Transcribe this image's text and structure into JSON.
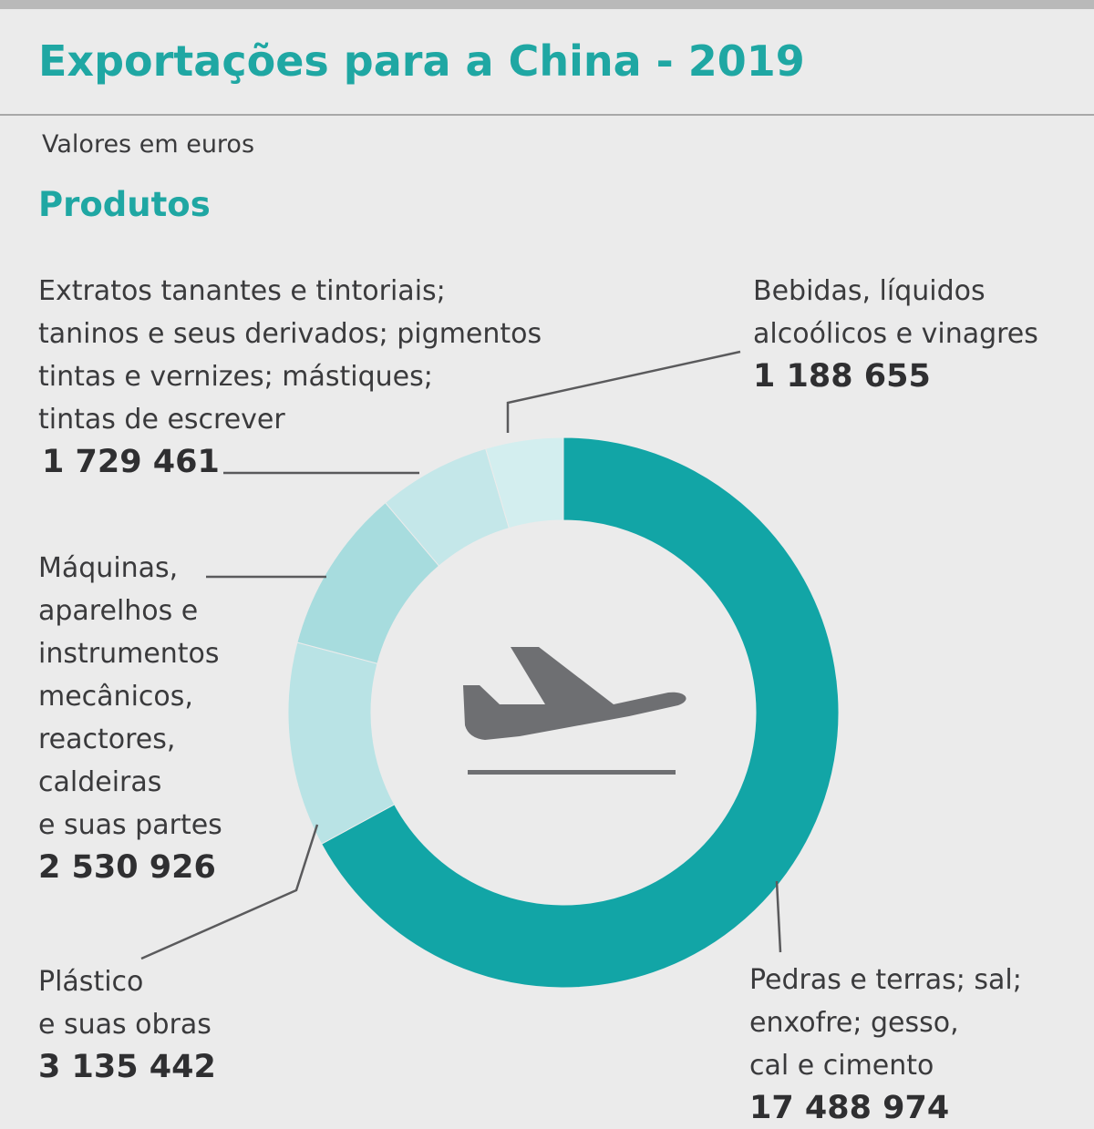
{
  "title": "Exportações para a China - 2019",
  "subtitle": "Valores em euros",
  "section_title": "Produtos",
  "center_icon": "airplane-departure-icon",
  "colors": {
    "accent": "#1fa7a3",
    "segment_main": "#12a5a6",
    "segment_light_1": "#7fcdd0",
    "segment_light_2": "#9dd8da",
    "segment_light_3": "#b5e1e3",
    "segment_light_4": "#c4e7e9",
    "segment_light_5": "#d3eeef",
    "background": "#ebebeb",
    "icon": "#6e6f72"
  },
  "labels": {
    "pedras": {
      "text": "Pedras e terras; sal;\nenxofre; gesso,\ncal e cimento",
      "value": "17 488 974"
    },
    "plastico": {
      "text": "Plástico\ne suas obras",
      "value": "3 135 442"
    },
    "maquinas": {
      "text": "Máquinas,\naparelhos e\ninstrumentos\nmecânicos,\nreactores,\ncaldeiras\ne suas partes",
      "value": "2 530 926"
    },
    "extratos": {
      "text": "Extratos tanantes e tintoriais;\ntaninos e seus derivados; pigmentos\ntintas e vernizes; mástiques;\ntintas de escrever",
      "value": "1 729 461"
    },
    "bebidas": {
      "text": "Bebidas, líquidos\nalcoólicos e vinagres",
      "value": "1 188 655"
    }
  },
  "chart_data": {
    "type": "pie",
    "variant": "donut",
    "title": "Exportações para a China - 2019",
    "subtitle": "Valores em euros",
    "categories": [
      "Pedras e terras; sal; enxofre; gesso, cal e cimento",
      "Plástico e suas obras",
      "Máquinas, aparelhos e instrumentos mecânicos, reactores, caldeiras e suas partes",
      "Extratos tanantes e tintoriais; taninos e seus derivados; pigmentos tintas e vernizes; mástiques; tintas de escrever",
      "Bebidas, líquidos alcoólicos e vinagres"
    ],
    "values": [
      17488974,
      3135442,
      2530926,
      1729461,
      1188655
    ],
    "unit": "euros",
    "start_angle_deg": 0,
    "direction": "clockwise",
    "segment_colors": [
      "#12a5a6",
      "#b9e3e5",
      "#a7dcde",
      "#c4e7e9",
      "#d3eeef"
    ]
  }
}
